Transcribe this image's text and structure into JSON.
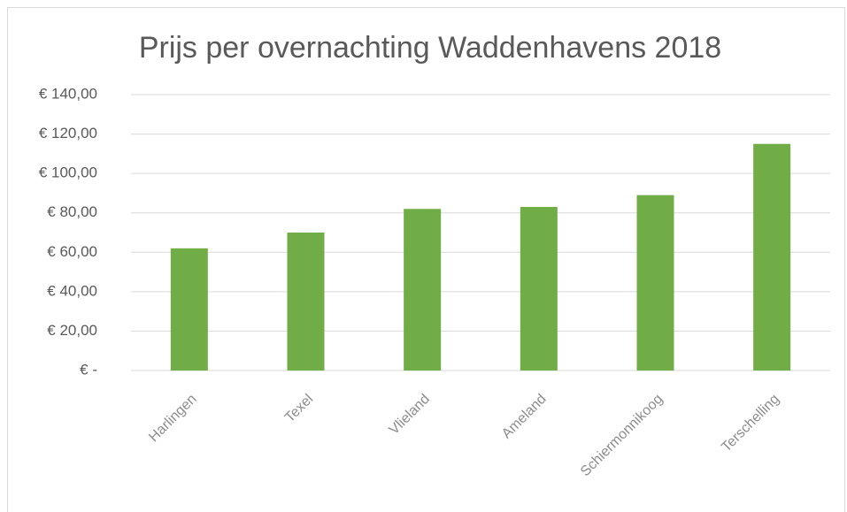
{
  "chart_data": {
    "type": "bar",
    "title": "Prijs per overnachting Waddenhavens 2018",
    "categories": [
      "Harlingen",
      "Texel",
      "Vlieland",
      "Ameland",
      "Schiermonnikoog",
      "Terschelling"
    ],
    "values": [
      62,
      70,
      82,
      83,
      89,
      115
    ],
    "color": "#70ad47",
    "ylim": [
      0,
      140
    ],
    "yticks": [
      {
        "value": 0,
        "label": "€ -"
      },
      {
        "value": 20,
        "label": "€ 20,00"
      },
      {
        "value": 40,
        "label": "€ 40,00"
      },
      {
        "value": 60,
        "label": "€ 60,00"
      },
      {
        "value": 80,
        "label": "€ 80,00"
      },
      {
        "value": 100,
        "label": "€ 100,00"
      },
      {
        "value": 120,
        "label": "€ 120,00"
      },
      {
        "value": 140,
        "label": "€ 140,00"
      }
    ],
    "grid": true
  }
}
